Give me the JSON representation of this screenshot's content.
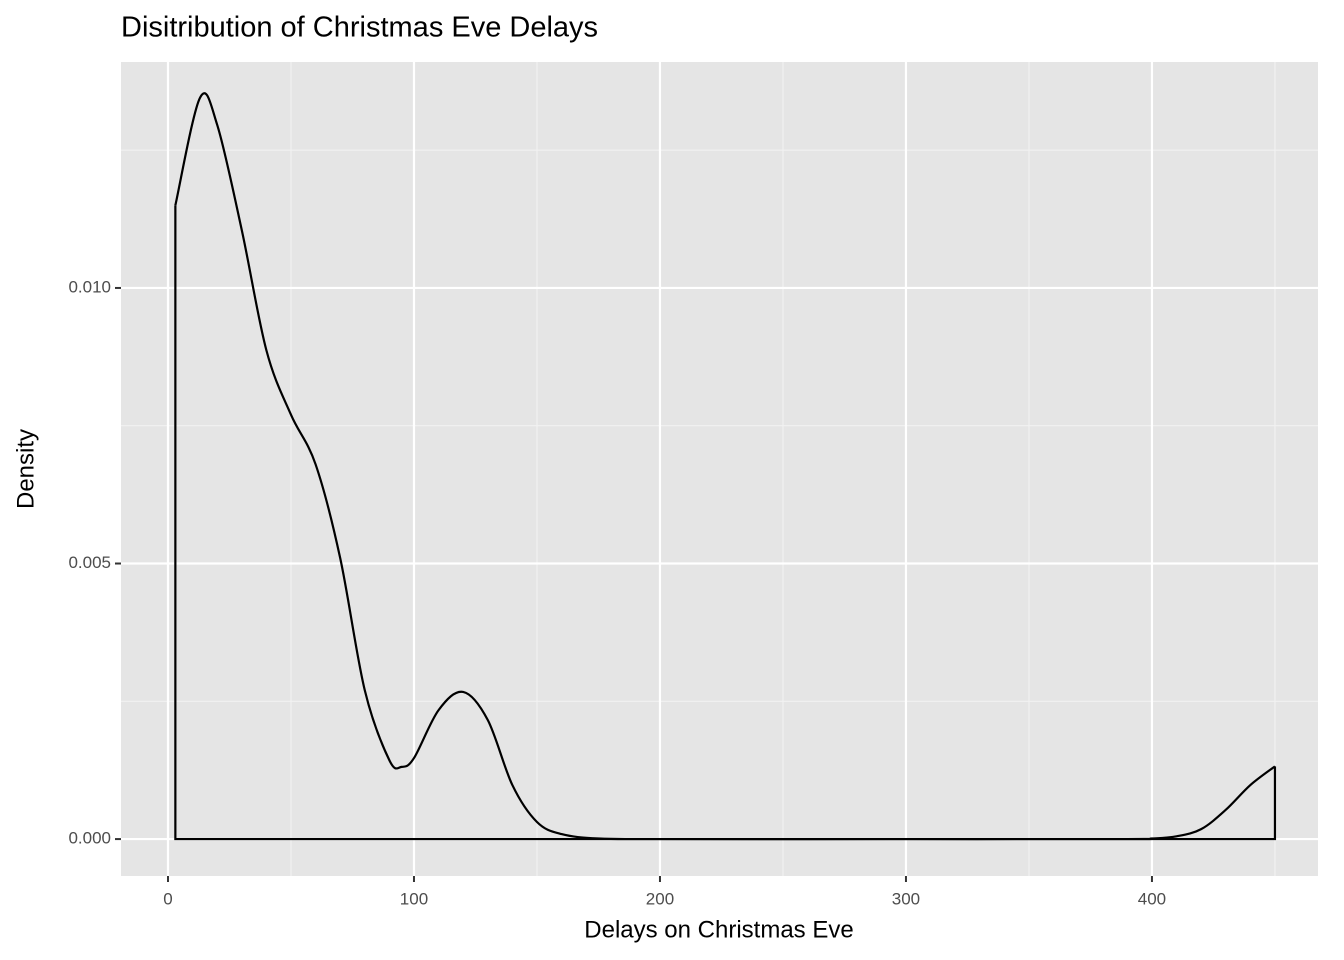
{
  "chart_data": {
    "type": "density",
    "title": "Disitribution of Christmas Eve Delays",
    "x_label": "Delays on Christmas Eve",
    "y_label": "Density",
    "x": [
      3,
      13,
      20,
      30,
      40,
      50,
      60,
      70,
      80,
      90,
      95,
      100,
      110,
      120,
      130,
      140,
      150,
      160,
      175,
      200,
      300,
      390,
      400,
      410,
      420,
      430,
      440,
      450
    ],
    "values": [
      0.0115,
      0.01345,
      0.01296,
      0.01105,
      0.00887,
      0.0077,
      0.0068,
      0.0051,
      0.0027,
      0.00143,
      0.00131,
      0.00147,
      0.00234,
      0.00267,
      0.00216,
      0.00098,
      0.00031,
      9e-05,
      1e-05,
      0,
      0,
      0,
      1e-05,
      5e-05,
      0.00018,
      0.00053,
      0.00098,
      0.00132
    ],
    "color": "#000000",
    "xlim": [
      -19.1,
      467.5
    ],
    "ylim": [
      -0.00067,
      0.0141
    ],
    "xticks": [
      0,
      100,
      200,
      300,
      400
    ],
    "yticks": [
      {
        "value": 0,
        "label": "0.000"
      },
      {
        "value": 0.005,
        "label": "0.005"
      },
      {
        "value": 0.01,
        "label": "0.010"
      }
    ],
    "x_minor_grid": [
      50,
      150,
      250,
      350,
      450
    ],
    "y_minor_grid": [
      0.0025,
      0.0075,
      0.0125
    ],
    "grid": true
  }
}
